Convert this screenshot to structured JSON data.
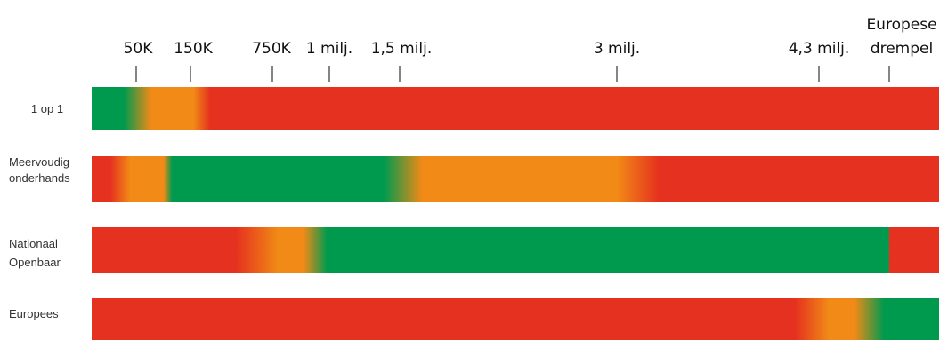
{
  "colors": {
    "green": "#009A4E",
    "orange": "#F18A16",
    "red": "#E5311F"
  },
  "chart_data": {
    "type": "bar",
    "title": "",
    "xlabel": "",
    "ylabel": "",
    "tick_labels": [
      {
        "label": "50K"
      },
      {
        "label": "150K"
      },
      {
        "label": "750K"
      },
      {
        "label": "1 milj."
      },
      {
        "label": "1,5 milj."
      },
      {
        "label": "3 milj."
      },
      {
        "label": "4,3 milj."
      },
      {
        "label": "Europese",
        "label2": "drempel"
      }
    ],
    "categories": [
      "1 op 1",
      "Meervoudig onderhands",
      "Nationaal Openbaar",
      "Europees"
    ],
    "category_lines": [
      [
        "1 op 1"
      ],
      [
        "Meervoudig",
        "onderhands"
      ],
      [
        "Nationaal",
        "Openbaar"
      ],
      [
        "Europees"
      ]
    ],
    "rows": [
      {
        "name": "1 op 1",
        "stops": [
          [
            "green",
            0
          ],
          [
            "green",
            0.038
          ],
          [
            "orange",
            0.07
          ],
          [
            "orange",
            0.12
          ],
          [
            "red",
            0.14
          ],
          [
            "red",
            1
          ]
        ]
      },
      {
        "name": "Meervoudig onderhands",
        "stops": [
          [
            "red",
            0
          ],
          [
            "red",
            0.022
          ],
          [
            "orange",
            0.045
          ],
          [
            "orange",
            0.085
          ],
          [
            "green",
            0.095
          ],
          [
            "green",
            0.345
          ],
          [
            "orange",
            0.39
          ],
          [
            "orange",
            0.62
          ],
          [
            "red",
            0.67
          ],
          [
            "red",
            1
          ]
        ]
      },
      {
        "name": "Nationaal Openbaar",
        "stops": [
          [
            "red",
            0
          ],
          [
            "red",
            0.17
          ],
          [
            "orange",
            0.22
          ],
          [
            "orange",
            0.25
          ],
          [
            "green",
            0.278
          ],
          [
            "green",
            0.94
          ],
          [
            "red",
            0.942
          ],
          [
            "red",
            1
          ]
        ]
      },
      {
        "name": "Europees",
        "stops": [
          [
            "red",
            0
          ],
          [
            "red",
            0.83
          ],
          [
            "orange",
            0.87
          ],
          [
            "orange",
            0.9
          ],
          [
            "green",
            0.935
          ],
          [
            "green",
            1
          ]
        ]
      }
    ]
  }
}
